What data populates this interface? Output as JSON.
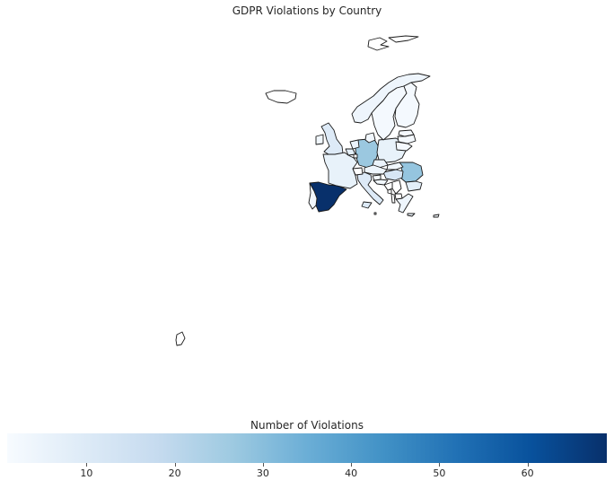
{
  "title": "GDPR Violations by Country",
  "colorbar": {
    "label": "Number of Violations",
    "min": 1,
    "max": 69,
    "ticks": [
      {
        "label": "10",
        "value": 10
      },
      {
        "label": "20",
        "value": 20
      },
      {
        "label": "30",
        "value": 30
      },
      {
        "label": "40",
        "value": 40
      },
      {
        "label": "50",
        "value": 50
      },
      {
        "label": "60",
        "value": 60
      }
    ]
  },
  "colors": {
    "border": "#1a1a1a",
    "no_data": "#ffffff",
    "scale": [
      "#f7fbff",
      "#deebf7",
      "#c6dbef",
      "#9ecae1",
      "#6baed6",
      "#4292c6",
      "#2171b5",
      "#08519c",
      "#08306b"
    ]
  },
  "chart_data": {
    "type": "heatmap",
    "title": "GDPR Violations by Country",
    "colorbar_label": "Number of Violations",
    "value_range": [
      1,
      69
    ],
    "regions": [
      {
        "key": "spain",
        "value": 69
      },
      {
        "key": "germany",
        "value": 27
      },
      {
        "key": "romania",
        "value": 28
      },
      {
        "key": "hungary",
        "value": 12
      },
      {
        "key": "uk",
        "value": 10
      },
      {
        "key": "italy",
        "value": 10
      },
      {
        "key": "france",
        "value": 6
      },
      {
        "key": "belgium",
        "value": 7
      },
      {
        "key": "netherlands",
        "value": 5
      },
      {
        "key": "poland",
        "value": 6
      },
      {
        "key": "czechia",
        "value": 5
      },
      {
        "key": "austria",
        "value": 4
      },
      {
        "key": "slovakia",
        "value": 3
      },
      {
        "key": "bulgaria",
        "value": 8
      },
      {
        "key": "greece",
        "value": 4
      },
      {
        "key": "norway",
        "value": 4
      },
      {
        "key": "sweden",
        "value": 2
      },
      {
        "key": "finland",
        "value": 2
      },
      {
        "key": "denmark",
        "value": 3
      },
      {
        "key": "ireland",
        "value": 3
      },
      {
        "key": "portugal",
        "value": 3
      },
      {
        "key": "croatia",
        "value": 3
      },
      {
        "key": "slovenia",
        "value": 2
      },
      {
        "key": "lithuania",
        "value": 2
      },
      {
        "key": "latvia",
        "value": 2
      },
      {
        "key": "estonia",
        "value": 2
      },
      {
        "key": "cyprus",
        "value": 2
      },
      {
        "key": "malta",
        "value": 1
      },
      {
        "key": "iceland",
        "value": null
      },
      {
        "key": "svalbard",
        "value": null
      },
      {
        "key": "switzerland",
        "value": null
      },
      {
        "key": "serbia",
        "value": null
      },
      {
        "key": "bosnia",
        "value": null
      },
      {
        "key": "montenegro",
        "value": null
      },
      {
        "key": "albania",
        "value": null
      },
      {
        "key": "north_macedonia",
        "value": null
      },
      {
        "key": "luxembourg",
        "value": null
      },
      {
        "key": "canary_islands",
        "value": null
      }
    ]
  }
}
